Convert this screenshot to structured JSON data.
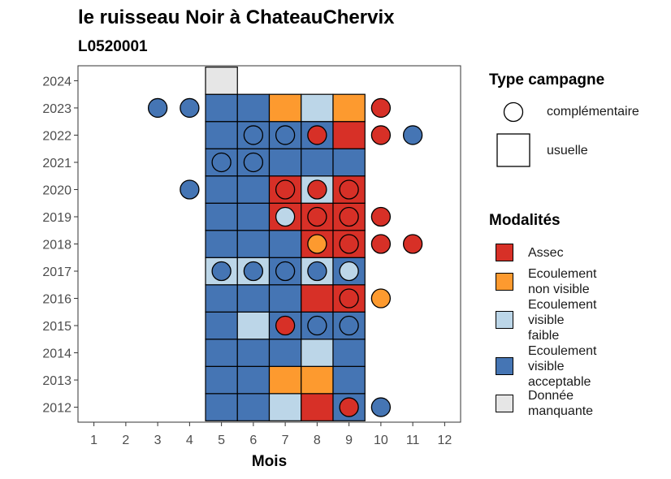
{
  "title": "le ruisseau Noir à ChateauChervix",
  "subtitle": "L0520001",
  "chart_data": {
    "type": "heatmap",
    "xlabel": "Mois",
    "ylabel": "",
    "x_ticks": [
      1,
      2,
      3,
      4,
      5,
      6,
      7,
      8,
      9,
      10,
      11,
      12
    ],
    "y_ticks": [
      2012,
      2013,
      2014,
      2015,
      2016,
      2017,
      2018,
      2019,
      2020,
      2021,
      2022,
      2023,
      2024
    ],
    "xlim": [
      0.5,
      12.5
    ],
    "ylim": [
      2011.45,
      2024.55
    ],
    "colors": {
      "Assec": "#d73027",
      "Ecoulement non visible": "#fd9a2f",
      "Ecoulement visible faible": "#bcd6e8",
      "Ecoulement visible acceptable": "#4575b4",
      "Donnée manquante": "#e6e6e6"
    },
    "usuelle": [
      {
        "year": 2012,
        "months": [
          "A",
          "A",
          "F",
          "S",
          "A"
        ]
      },
      {
        "year": 2013,
        "months": [
          "A",
          "A",
          "N",
          "N",
          "A"
        ]
      },
      {
        "year": 2014,
        "months": [
          "A",
          "A",
          "A",
          "F",
          "A"
        ]
      },
      {
        "year": 2015,
        "months": [
          "A",
          "F",
          "A",
          "A",
          "A"
        ]
      },
      {
        "year": 2016,
        "months": [
          "A",
          "A",
          "A",
          "S",
          "S"
        ]
      },
      {
        "year": 2017,
        "months": [
          "F",
          "F",
          "A",
          "F",
          "A"
        ]
      },
      {
        "year": 2018,
        "months": [
          "A",
          "A",
          "A",
          "S",
          "S"
        ]
      },
      {
        "year": 2019,
        "months": [
          "A",
          "A",
          "S",
          "S",
          "S"
        ]
      },
      {
        "year": 2020,
        "months": [
          "A",
          "A",
          "S",
          "F",
          "S"
        ]
      },
      {
        "year": 2021,
        "months": [
          "A",
          "A",
          "A",
          "A",
          "A"
        ]
      },
      {
        "year": 2022,
        "months": [
          "A",
          "A",
          "A",
          "A",
          "S"
        ]
      },
      {
        "year": 2023,
        "months": [
          "A",
          "A",
          "N",
          "F",
          "N"
        ]
      },
      {
        "year": 2024,
        "months": [
          "M"
        ]
      }
    ],
    "usuelle_start_month": 5,
    "complementaire": [
      {
        "year": 2023,
        "month": 3,
        "mod": "A"
      },
      {
        "year": 2023,
        "month": 4,
        "mod": "A"
      },
      {
        "year": 2023,
        "month": 10,
        "mod": "S"
      },
      {
        "year": 2022,
        "month": 6,
        "mod": "A"
      },
      {
        "year": 2022,
        "month": 7,
        "mod": "A"
      },
      {
        "year": 2022,
        "month": 8,
        "mod": "S"
      },
      {
        "year": 2022,
        "month": 10,
        "mod": "S"
      },
      {
        "year": 2022,
        "month": 11,
        "mod": "A"
      },
      {
        "year": 2021,
        "month": 5,
        "mod": "A"
      },
      {
        "year": 2021,
        "month": 6,
        "mod": "A"
      },
      {
        "year": 2020,
        "month": 4,
        "mod": "A"
      },
      {
        "year": 2020,
        "month": 7,
        "mod": "S"
      },
      {
        "year": 2020,
        "month": 8,
        "mod": "S"
      },
      {
        "year": 2020,
        "month": 9,
        "mod": "S"
      },
      {
        "year": 2019,
        "month": 7,
        "mod": "F"
      },
      {
        "year": 2019,
        "month": 8,
        "mod": "S"
      },
      {
        "year": 2019,
        "month": 9,
        "mod": "S"
      },
      {
        "year": 2019,
        "month": 10,
        "mod": "S"
      },
      {
        "year": 2018,
        "month": 8,
        "mod": "N"
      },
      {
        "year": 2018,
        "month": 9,
        "mod": "S"
      },
      {
        "year": 2018,
        "month": 10,
        "mod": "S"
      },
      {
        "year": 2018,
        "month": 11,
        "mod": "S"
      },
      {
        "year": 2017,
        "month": 5,
        "mod": "A"
      },
      {
        "year": 2017,
        "month": 6,
        "mod": "A"
      },
      {
        "year": 2017,
        "month": 7,
        "mod": "A"
      },
      {
        "year": 2017,
        "month": 8,
        "mod": "A"
      },
      {
        "year": 2017,
        "month": 9,
        "mod": "F"
      },
      {
        "year": 2016,
        "month": 9,
        "mod": "S"
      },
      {
        "year": 2016,
        "month": 10,
        "mod": "N"
      },
      {
        "year": 2015,
        "month": 7,
        "mod": "S"
      },
      {
        "year": 2015,
        "month": 8,
        "mod": "A"
      },
      {
        "year": 2015,
        "month": 9,
        "mod": "A"
      },
      {
        "year": 2012,
        "month": 9,
        "mod": "S"
      },
      {
        "year": 2012,
        "month": 10,
        "mod": "A"
      }
    ],
    "mod_codes": {
      "S": "Assec",
      "N": "Ecoulement non visible",
      "F": "Ecoulement visible faible",
      "A": "Ecoulement visible acceptable",
      "M": "Donnée manquante"
    }
  },
  "legend": {
    "type_title": "Type campagne",
    "type_items": [
      "complémentaire",
      "usuelle"
    ],
    "mod_title": "Modalités",
    "mod_items": [
      {
        "key": "Assec",
        "lines": [
          "Assec"
        ]
      },
      {
        "key": "Ecoulement non visible",
        "lines": [
          "Ecoulement",
          "non visible"
        ]
      },
      {
        "key": "Ecoulement visible faible",
        "lines": [
          "Ecoulement",
          "visible",
          "faible"
        ]
      },
      {
        "key": "Ecoulement visible acceptable",
        "lines": [
          "Ecoulement",
          "visible",
          "acceptable"
        ]
      },
      {
        "key": "Donnée manquante",
        "lines": [
          "Donnée",
          "manquante"
        ]
      }
    ]
  }
}
